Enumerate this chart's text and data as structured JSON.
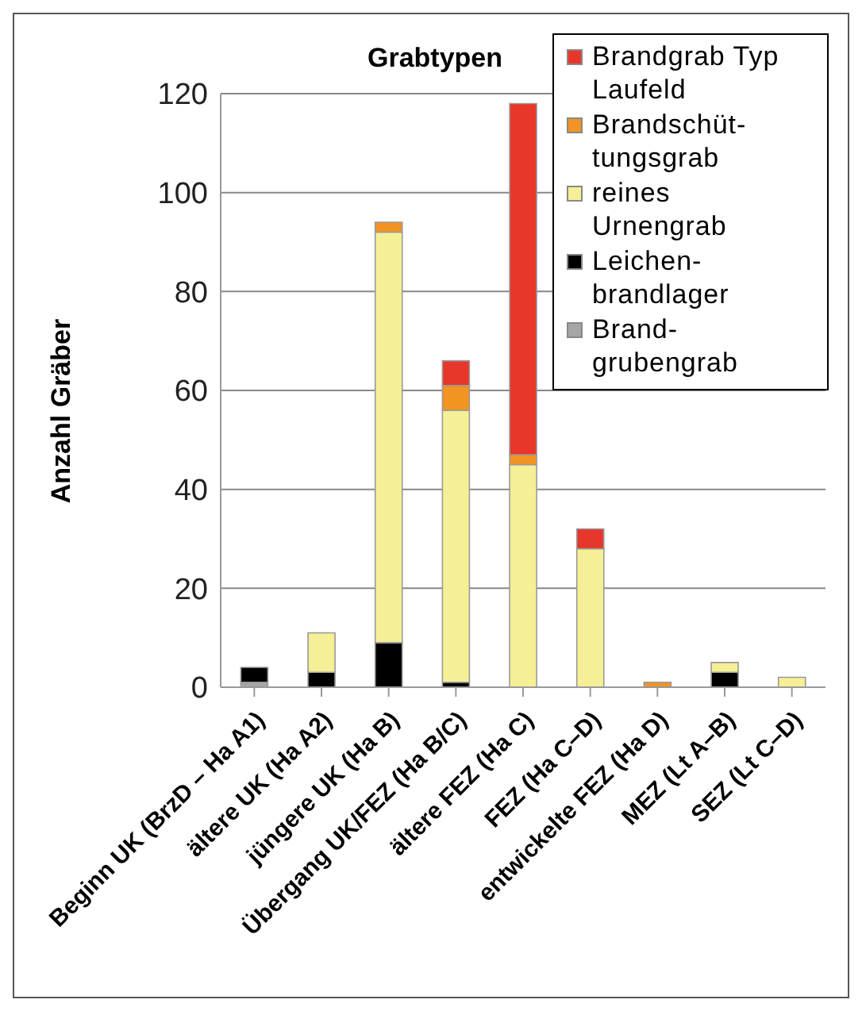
{
  "chart_data": {
    "type": "bar",
    "title": "Grabtypen",
    "ylabel": "Anzahl Gräber",
    "stacked": true,
    "categories": [
      "Beginn UK (BrzD – Ha A1)",
      "ältere UK (Ha A2)",
      "jüngere UK (Ha B)",
      "Übergang UK/FEZ (Ha B/C)",
      "ältere FEZ (Ha C)",
      "FEZ (Ha C–D)",
      "entwickelte FEZ (Ha D)",
      "MEZ (Lt A–B)",
      "SEZ (Lt C–D)"
    ],
    "series": [
      {
        "name": "Brand-grubengrab",
        "color": "#a6a6a6",
        "values": [
          1,
          null,
          null,
          null,
          null,
          null,
          null,
          null,
          null
        ]
      },
      {
        "name": "Leichen-brandlager",
        "color": "#000000",
        "values": [
          3,
          3,
          9,
          1,
          null,
          null,
          null,
          3,
          null
        ]
      },
      {
        "name": "reines Urnengrab",
        "color": "#f5f096",
        "values": [
          null,
          8,
          83,
          55,
          45,
          28,
          null,
          2,
          2
        ]
      },
      {
        "name": "Brandschüt-tungsgrab",
        "color": "#f39322",
        "values": [
          null,
          null,
          2,
          5,
          2,
          null,
          1,
          null,
          null
        ]
      },
      {
        "name": "Brandgrab Typ Laufeld",
        "color": "#e8362a",
        "values": [
          null,
          null,
          null,
          5,
          71,
          4,
          null,
          null,
          null
        ]
      }
    ],
    "ylim": [
      0,
      120
    ],
    "yticks": [
      0,
      20,
      40,
      60,
      80,
      100,
      120
    ],
    "grid": "y",
    "legend": "top right"
  }
}
